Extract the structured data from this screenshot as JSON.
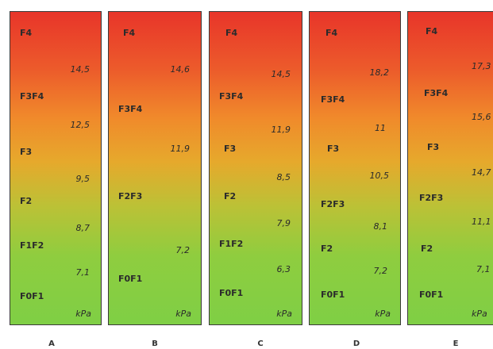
{
  "columns": [
    {
      "label": "A",
      "unit": "kPa",
      "stages": [
        "F4",
        "F3F4",
        "F3",
        "F2",
        "F1F2",
        "F0F1"
      ],
      "values": [
        "14,5",
        "12,5",
        "9,5",
        "8,7",
        "7,1"
      ]
    },
    {
      "label": "B",
      "unit": "kPa",
      "stages": [
        "F4",
        "F3F4",
        "F2F3",
        "F0F1"
      ],
      "values": [
        "14,6",
        "11,9",
        "7,2"
      ]
    },
    {
      "label": "C",
      "unit": "kPa",
      "stages": [
        "F4",
        "F3F4",
        "F3",
        "F2",
        "F1F2",
        "F0F1"
      ],
      "values": [
        "14,5",
        "11,9",
        "8,5",
        "7,9",
        "6,3"
      ]
    },
    {
      "label": "D",
      "unit": "kPa",
      "stages": [
        "F4",
        "F3F4",
        "F3",
        "F2F3",
        "F2",
        "F0F1"
      ],
      "values": [
        "18,2",
        "11",
        "10,5",
        "8,1",
        "7,2"
      ]
    },
    {
      "label": "E",
      "unit": "kPa",
      "stages": [
        "F4",
        "F3F4",
        "F3",
        "F2F3",
        "F2",
        "F0F1"
      ],
      "values": [
        "17,3",
        "15,6",
        "14,7",
        "11,1",
        "7,1"
      ]
    }
  ],
  "colors": {
    "top": "#e8352a",
    "middle": "#e6a92c",
    "bottom": "#7fcf45",
    "border": "#3a3a3a"
  }
}
